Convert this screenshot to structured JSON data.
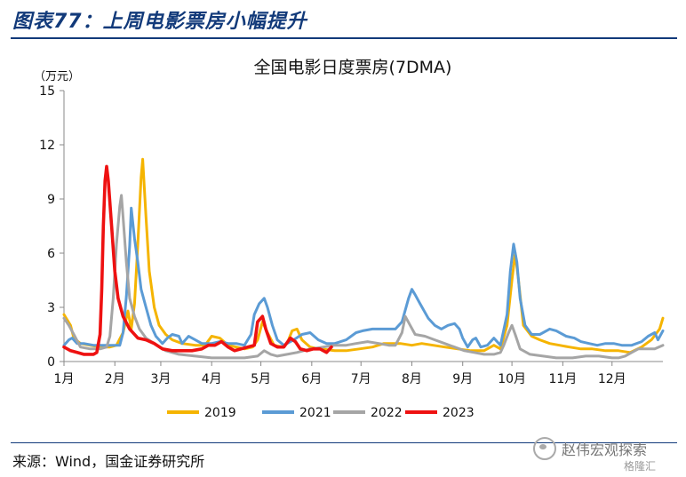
{
  "figure_title": "图表77：上周电影票房小幅提升",
  "source": "来源：Wind，国金证券研究所",
  "watermark": {
    "name": "赵伟宏观探索",
    "sub": "格隆汇"
  },
  "chart_data": {
    "type": "line",
    "title": "全国电影日度票房(7DMA)",
    "ylabel": "（万元）",
    "ylim": [
      0,
      15
    ],
    "yticks": [
      0,
      3,
      6,
      9,
      12,
      15
    ],
    "xlim": [
      0,
      365
    ],
    "xticks": [
      {
        "label": "1月",
        "day": 0
      },
      {
        "label": "2月",
        "day": 31
      },
      {
        "label": "3月",
        "day": 59
      },
      {
        "label": "4月",
        "day": 90
      },
      {
        "label": "5月",
        "day": 120
      },
      {
        "label": "6月",
        "day": 151
      },
      {
        "label": "7月",
        "day": 181
      },
      {
        "label": "8月",
        "day": 212
      },
      {
        "label": "9月",
        "day": 243
      },
      {
        "label": "10月",
        "day": 273
      },
      {
        "label": "11月",
        "day": 304
      },
      {
        "label": "12月",
        "day": 334
      }
    ],
    "grid": false,
    "legend_position": "bottom",
    "series": [
      {
        "name": "2019",
        "color": "#f5b400",
        "points": [
          [
            0,
            2.6
          ],
          [
            4,
            2.0
          ],
          [
            6,
            1.3
          ],
          [
            10,
            1.0
          ],
          [
            16,
            0.9
          ],
          [
            22,
            0.8
          ],
          [
            28,
            0.8
          ],
          [
            32,
            0.9
          ],
          [
            36,
            1.6
          ],
          [
            39,
            2.8
          ],
          [
            41,
            1.8
          ],
          [
            43,
            3.2
          ],
          [
            45,
            6.5
          ],
          [
            47,
            10.2
          ],
          [
            48,
            11.2
          ],
          [
            50,
            8.0
          ],
          [
            52,
            5.0
          ],
          [
            55,
            3.0
          ],
          [
            58,
            2.0
          ],
          [
            62,
            1.5
          ],
          [
            66,
            1.2
          ],
          [
            72,
            1.0
          ],
          [
            80,
            0.9
          ],
          [
            86,
            0.9
          ],
          [
            90,
            1.4
          ],
          [
            95,
            1.3
          ],
          [
            100,
            0.9
          ],
          [
            105,
            0.8
          ],
          [
            110,
            0.7
          ],
          [
            115,
            0.8
          ],
          [
            118,
            1.2
          ],
          [
            121,
            2.2
          ],
          [
            124,
            1.6
          ],
          [
            128,
            0.9
          ],
          [
            133,
            0.8
          ],
          [
            136,
            1.0
          ],
          [
            139,
            1.7
          ],
          [
            142,
            1.8
          ],
          [
            145,
            1.2
          ],
          [
            150,
            0.8
          ],
          [
            156,
            0.7
          ],
          [
            165,
            0.6
          ],
          [
            172,
            0.6
          ],
          [
            180,
            0.7
          ],
          [
            188,
            0.8
          ],
          [
            195,
            1.0
          ],
          [
            205,
            1.0
          ],
          [
            212,
            0.9
          ],
          [
            218,
            1.0
          ],
          [
            225,
            0.9
          ],
          [
            232,
            0.8
          ],
          [
            240,
            0.7
          ],
          [
            248,
            0.6
          ],
          [
            256,
            0.6
          ],
          [
            262,
            0.9
          ],
          [
            266,
            0.7
          ],
          [
            270,
            2.0
          ],
          [
            273,
            4.5
          ],
          [
            275,
            6.0
          ],
          [
            277,
            4.5
          ],
          [
            280,
            2.0
          ],
          [
            285,
            1.4
          ],
          [
            290,
            1.2
          ],
          [
            296,
            1.0
          ],
          [
            302,
            0.9
          ],
          [
            308,
            0.8
          ],
          [
            315,
            0.7
          ],
          [
            322,
            0.7
          ],
          [
            330,
            0.6
          ],
          [
            338,
            0.6
          ],
          [
            345,
            0.5
          ],
          [
            352,
            0.8
          ],
          [
            358,
            1.2
          ],
          [
            363,
            1.8
          ],
          [
            365,
            2.4
          ]
        ]
      },
      {
        "name": "2021",
        "color": "#5b9bd5",
        "points": [
          [
            0,
            0.9
          ],
          [
            3,
            1.2
          ],
          [
            5,
            1.3
          ],
          [
            8,
            1.0
          ],
          [
            12,
            1.0
          ],
          [
            18,
            0.9
          ],
          [
            24,
            0.9
          ],
          [
            30,
            0.9
          ],
          [
            34,
            0.9
          ],
          [
            36,
            1.6
          ],
          [
            38,
            3.6
          ],
          [
            40,
            6.4
          ],
          [
            41,
            8.5
          ],
          [
            43,
            6.8
          ],
          [
            45,
            5.5
          ],
          [
            47,
            4.0
          ],
          [
            50,
            3.0
          ],
          [
            53,
            2.0
          ],
          [
            56,
            1.4
          ],
          [
            60,
            1.0
          ],
          [
            63,
            1.3
          ],
          [
            66,
            1.5
          ],
          [
            70,
            1.4
          ],
          [
            72,
            1.0
          ],
          [
            76,
            1.4
          ],
          [
            80,
            1.2
          ],
          [
            84,
            1.0
          ],
          [
            90,
            1.0
          ],
          [
            95,
            1.1
          ],
          [
            100,
            1.0
          ],
          [
            105,
            1.0
          ],
          [
            110,
            0.9
          ],
          [
            114,
            1.5
          ],
          [
            116,
            2.6
          ],
          [
            119,
            3.2
          ],
          [
            122,
            3.5
          ],
          [
            124,
            3.0
          ],
          [
            127,
            2.0
          ],
          [
            130,
            1.2
          ],
          [
            134,
            0.9
          ],
          [
            140,
            1.2
          ],
          [
            145,
            1.5
          ],
          [
            150,
            1.6
          ],
          [
            155,
            1.2
          ],
          [
            160,
            1.0
          ],
          [
            165,
            1.0
          ],
          [
            172,
            1.2
          ],
          [
            178,
            1.6
          ],
          [
            182,
            1.7
          ],
          [
            188,
            1.8
          ],
          [
            196,
            1.8
          ],
          [
            202,
            1.8
          ],
          [
            206,
            2.2
          ],
          [
            210,
            3.5
          ],
          [
            212,
            4.0
          ],
          [
            214,
            3.7
          ],
          [
            217,
            3.2
          ],
          [
            222,
            2.4
          ],
          [
            226,
            2.0
          ],
          [
            230,
            1.8
          ],
          [
            234,
            2.0
          ],
          [
            238,
            2.1
          ],
          [
            241,
            1.8
          ],
          [
            243,
            1.3
          ],
          [
            246,
            0.8
          ],
          [
            249,
            1.2
          ],
          [
            251,
            1.3
          ],
          [
            254,
            0.8
          ],
          [
            258,
            0.9
          ],
          [
            262,
            1.3
          ],
          [
            266,
            0.9
          ],
          [
            270,
            2.6
          ],
          [
            272,
            5.0
          ],
          [
            274,
            6.5
          ],
          [
            276,
            5.5
          ],
          [
            278,
            3.5
          ],
          [
            281,
            2.0
          ],
          [
            285,
            1.5
          ],
          [
            290,
            1.5
          ],
          [
            296,
            1.8
          ],
          [
            300,
            1.7
          ],
          [
            306,
            1.4
          ],
          [
            311,
            1.3
          ],
          [
            315,
            1.1
          ],
          [
            320,
            1.0
          ],
          [
            325,
            0.9
          ],
          [
            330,
            1.0
          ],
          [
            335,
            1.0
          ],
          [
            340,
            0.9
          ],
          [
            346,
            0.9
          ],
          [
            352,
            1.1
          ],
          [
            356,
            1.4
          ],
          [
            360,
            1.6
          ],
          [
            362,
            1.2
          ],
          [
            365,
            1.7
          ]
        ]
      },
      {
        "name": "2022",
        "color": "#a5a5a5",
        "points": [
          [
            0,
            2.4
          ],
          [
            3,
            2.0
          ],
          [
            6,
            1.5
          ],
          [
            10,
            0.8
          ],
          [
            16,
            0.7
          ],
          [
            22,
            0.7
          ],
          [
            26,
            0.8
          ],
          [
            28,
            1.4
          ],
          [
            30,
            3.5
          ],
          [
            32,
            6.5
          ],
          [
            34,
            8.6
          ],
          [
            35,
            9.2
          ],
          [
            36,
            8.0
          ],
          [
            38,
            5.5
          ],
          [
            40,
            3.5
          ],
          [
            43,
            2.5
          ],
          [
            46,
            1.8
          ],
          [
            50,
            1.3
          ],
          [
            55,
            1.0
          ],
          [
            62,
            0.6
          ],
          [
            70,
            0.4
          ],
          [
            80,
            0.3
          ],
          [
            90,
            0.2
          ],
          [
            100,
            0.2
          ],
          [
            110,
            0.2
          ],
          [
            118,
            0.3
          ],
          [
            122,
            0.6
          ],
          [
            126,
            0.4
          ],
          [
            130,
            0.3
          ],
          [
            136,
            0.4
          ],
          [
            142,
            0.5
          ],
          [
            150,
            0.7
          ],
          [
            158,
            0.8
          ],
          [
            165,
            0.9
          ],
          [
            172,
            0.9
          ],
          [
            178,
            1.0
          ],
          [
            185,
            1.1
          ],
          [
            192,
            1.0
          ],
          [
            198,
            0.9
          ],
          [
            202,
            0.9
          ],
          [
            206,
            1.6
          ],
          [
            208,
            2.5
          ],
          [
            211,
            2.0
          ],
          [
            214,
            1.5
          ],
          [
            220,
            1.4
          ],
          [
            226,
            1.2
          ],
          [
            232,
            1.0
          ],
          [
            238,
            0.8
          ],
          [
            244,
            0.6
          ],
          [
            250,
            0.5
          ],
          [
            256,
            0.4
          ],
          [
            262,
            0.4
          ],
          [
            266,
            0.5
          ],
          [
            268,
            0.9
          ],
          [
            271,
            1.6
          ],
          [
            273,
            2.0
          ],
          [
            275,
            1.5
          ],
          [
            278,
            0.7
          ],
          [
            284,
            0.4
          ],
          [
            292,
            0.3
          ],
          [
            300,
            0.2
          ],
          [
            310,
            0.2
          ],
          [
            318,
            0.3
          ],
          [
            326,
            0.3
          ],
          [
            334,
            0.2
          ],
          [
            338,
            0.2
          ],
          [
            342,
            0.3
          ],
          [
            346,
            0.5
          ],
          [
            350,
            0.7
          ],
          [
            354,
            0.7
          ],
          [
            360,
            0.7
          ],
          [
            365,
            0.9
          ]
        ]
      },
      {
        "name": "2023",
        "color": "#ee1111",
        "points": [
          [
            0,
            0.8
          ],
          [
            4,
            0.6
          ],
          [
            8,
            0.5
          ],
          [
            12,
            0.4
          ],
          [
            18,
            0.4
          ],
          [
            20,
            0.5
          ],
          [
            22,
            1.5
          ],
          [
            23,
            4.0
          ],
          [
            24,
            7.5
          ],
          [
            25,
            10.0
          ],
          [
            26,
            10.8
          ],
          [
            27,
            10.0
          ],
          [
            29,
            7.5
          ],
          [
            31,
            5.0
          ],
          [
            33,
            3.5
          ],
          [
            36,
            2.5
          ],
          [
            40,
            1.8
          ],
          [
            45,
            1.3
          ],
          [
            50,
            1.2
          ],
          [
            55,
            1.0
          ],
          [
            60,
            0.7
          ],
          [
            66,
            0.6
          ],
          [
            72,
            0.6
          ],
          [
            78,
            0.6
          ],
          [
            84,
            0.7
          ],
          [
            88,
            0.9
          ],
          [
            92,
            0.9
          ],
          [
            96,
            1.1
          ],
          [
            100,
            0.8
          ],
          [
            104,
            0.6
          ],
          [
            108,
            0.7
          ],
          [
            112,
            0.8
          ],
          [
            116,
            0.9
          ],
          [
            118,
            2.2
          ],
          [
            121,
            2.5
          ],
          [
            123,
            1.8
          ],
          [
            126,
            1.0
          ],
          [
            130,
            0.8
          ],
          [
            134,
            0.8
          ],
          [
            138,
            1.3
          ],
          [
            141,
            1.1
          ],
          [
            144,
            0.7
          ],
          [
            148,
            0.6
          ],
          [
            152,
            0.7
          ],
          [
            156,
            0.7
          ],
          [
            160,
            0.5
          ],
          [
            163,
            0.8
          ]
        ]
      }
    ]
  }
}
